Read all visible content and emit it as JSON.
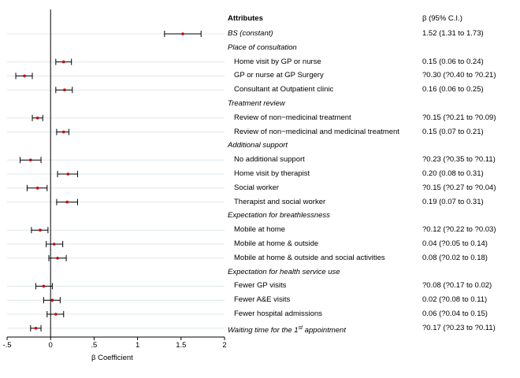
{
  "chart_data": {
    "type": "forest",
    "xlabel": "β Coefficient",
    "xlim": [
      -0.5,
      2
    ],
    "xticks": [
      "-.5",
      "0",
      ".5",
      "1",
      "1.5",
      "2"
    ],
    "xtick_values": [
      -0.5,
      0,
      0.5,
      1,
      1.5,
      2
    ],
    "reference_line": 0,
    "grid": "horizontal",
    "colors": {
      "point": "#cc0000",
      "ci": "#000000",
      "grid": "#dfe8ec"
    },
    "header": {
      "label": "Attributes",
      "ci": "β (95% C.I.)"
    },
    "rows": [
      {
        "kind": "item",
        "style": "italic",
        "label": "BS (constant)",
        "beta": 1.52,
        "lo": 1.31,
        "hi": 1.73,
        "ci_text": "1.52 (1.31 to 1.73)"
      },
      {
        "kind": "group",
        "label": "Place of consultation"
      },
      {
        "kind": "item",
        "label": "Home visit by GP or nurse",
        "beta": 0.15,
        "lo": 0.06,
        "hi": 0.24,
        "ci_text": "0.15 (0.06 to 0.24)"
      },
      {
        "kind": "item",
        "label": "GP or nurse at GP Surgery",
        "beta": -0.3,
        "lo": -0.4,
        "hi": -0.21,
        "ci_text": "?0.30 (?0.40 to ?0.21)"
      },
      {
        "kind": "item",
        "label": "Consultant at Outpatient clinic",
        "beta": 0.16,
        "lo": 0.06,
        "hi": 0.25,
        "ci_text": "0.16 (0.06 to 0.25)"
      },
      {
        "kind": "group",
        "label": "Treatment review"
      },
      {
        "kind": "item",
        "label": "Review of non−medicinal treatment",
        "beta": -0.15,
        "lo": -0.21,
        "hi": -0.09,
        "ci_text": "?0.15 (?0.21 to ?0.09)"
      },
      {
        "kind": "item",
        "label": "Review of non−medicinal and medicinal treatment",
        "beta": 0.15,
        "lo": 0.07,
        "hi": 0.21,
        "ci_text": "0.15 (0.07 to 0.21)"
      },
      {
        "kind": "group",
        "label": "Additional support"
      },
      {
        "kind": "item",
        "label": "No additional support",
        "beta": -0.23,
        "lo": -0.35,
        "hi": -0.11,
        "ci_text": "?0.23 (?0.35 to ?0.11)"
      },
      {
        "kind": "item",
        "label": "Home visit by therapist",
        "beta": 0.2,
        "lo": 0.08,
        "hi": 0.31,
        "ci_text": "0.20 (0.08 to 0.31)"
      },
      {
        "kind": "item",
        "label": "Social worker",
        "beta": -0.15,
        "lo": -0.27,
        "hi": -0.04,
        "ci_text": "?0.15 (?0.27 to ?0.04)"
      },
      {
        "kind": "item",
        "label": "Therapist and social worker",
        "beta": 0.19,
        "lo": 0.07,
        "hi": 0.31,
        "ci_text": "0.19 (0.07 to 0.31)"
      },
      {
        "kind": "group",
        "label": "Expectation for breathlessness"
      },
      {
        "kind": "item",
        "label": "Mobile at home",
        "beta": -0.12,
        "lo": -0.22,
        "hi": -0.03,
        "ci_text": "?0.12 (?0.22 to ?0.03)"
      },
      {
        "kind": "item",
        "label": "Mobile at home & outside",
        "beta": 0.04,
        "lo": -0.05,
        "hi": 0.14,
        "ci_text": "0.04 (?0.05 to 0.14)"
      },
      {
        "kind": "item",
        "label": "Mobile at home & outside and social activities",
        "beta": 0.08,
        "lo": -0.02,
        "hi": 0.18,
        "ci_text": "0.08 (?0.02 to 0.18)"
      },
      {
        "kind": "group",
        "label": "Expectation for health service use"
      },
      {
        "kind": "item",
        "label": "Fewer GP visits",
        "beta": -0.08,
        "lo": -0.17,
        "hi": 0.02,
        "ci_text": "?0.08 (?0.17 to 0.02)"
      },
      {
        "kind": "item",
        "label": "Fewer A&E visits",
        "beta": 0.02,
        "lo": -0.08,
        "hi": 0.11,
        "ci_text": "0.02 (?0.08 to 0.11)"
      },
      {
        "kind": "item",
        "label": "Fewer hospital admissions",
        "beta": 0.06,
        "lo": -0.04,
        "hi": 0.15,
        "ci_text": "0.06 (?0.04 to 0.15)"
      },
      {
        "kind": "item",
        "style": "italic",
        "label": "Waiting time for the 1",
        "sup": "st",
        "label_tail": " appointment",
        "beta": -0.17,
        "lo": -0.23,
        "hi": -0.11,
        "ci_text": "?0.17 (?0.23 to ?0.11)"
      }
    ]
  }
}
